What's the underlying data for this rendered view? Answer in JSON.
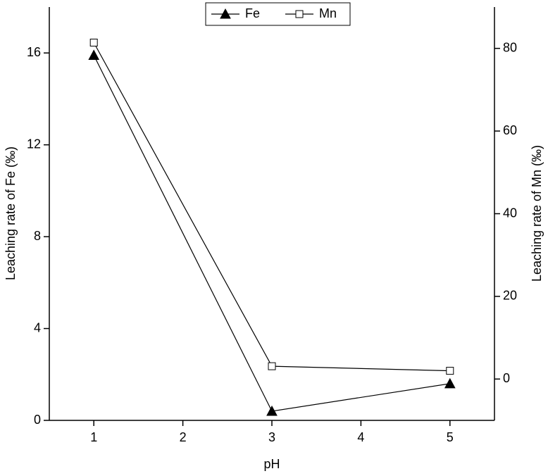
{
  "chart_data": {
    "type": "line",
    "x_label": "pH",
    "y_label": "Leaching rate of Fe (‰)",
    "y2_label": "Leaching rate of Mn (‰)",
    "x": [
      1,
      3,
      5
    ],
    "series": [
      {
        "name": "Fe",
        "color": "#000000",
        "marker": "triangle",
        "filled": true,
        "values": [
          15.9,
          0.4,
          1.6
        ]
      },
      {
        "name": "Mn",
        "color": "#000000",
        "marker": "square",
        "filled": false,
        "axis": "y2",
        "values": [
          81.4,
          3.1,
          2.0
        ]
      }
    ],
    "xlim": [
      0.5,
      5.5
    ],
    "xticks": [
      1,
      2,
      3,
      4,
      5
    ],
    "ylim": [
      0,
      18
    ],
    "yticks": [
      0,
      4,
      8,
      12,
      16
    ],
    "y2lim": [
      -10,
      90
    ],
    "y2ticks": [
      0,
      20,
      40,
      60,
      80
    ],
    "legend": "top"
  }
}
